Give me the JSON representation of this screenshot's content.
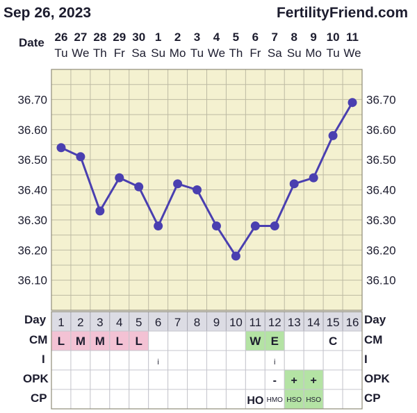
{
  "header": {
    "chart_date": "Sep 26, 2023",
    "site": "FertilityFriend.com"
  },
  "labels": {
    "date_row": "Date",
    "day_row": "Day",
    "cm_row": "CM",
    "i_row": "I",
    "opk_row": "OPK",
    "cp_row": "CP"
  },
  "colors": {
    "plot_bg": "#f4f1d0",
    "line": "#4a3fb0",
    "grid": "#bdbaa3",
    "pink": "#f3c2d4",
    "green": "#b4e3a4",
    "day_header": "#dcdce4"
  },
  "chart_data": {
    "type": "line",
    "y_unit": "°C",
    "ylim": [
      36.0,
      36.8
    ],
    "y_ticks": [
      "36.10",
      "36.20",
      "36.30",
      "36.40",
      "36.50",
      "36.60",
      "36.70"
    ],
    "dates": [
      "26",
      "27",
      "28",
      "29",
      "30",
      "1",
      "2",
      "3",
      "4",
      "5",
      "6",
      "7",
      "8",
      "9",
      "10",
      "11"
    ],
    "weekdays": [
      "Tu",
      "We",
      "Th",
      "Fr",
      "Sa",
      "Su",
      "Mo",
      "Tu",
      "We",
      "Th",
      "Fr",
      "Sa",
      "Su",
      "Mo",
      "Tu",
      "We"
    ],
    "cycle_days": [
      "1",
      "2",
      "3",
      "4",
      "5",
      "6",
      "7",
      "8",
      "9",
      "10",
      "11",
      "12",
      "13",
      "14",
      "15",
      "16"
    ],
    "temperatures": [
      36.54,
      36.51,
      36.33,
      36.44,
      36.41,
      36.28,
      36.42,
      36.4,
      36.28,
      36.18,
      36.28,
      36.28,
      36.42,
      36.44,
      36.58,
      36.69
    ],
    "grid": true
  },
  "rows": {
    "cm": [
      "L",
      "M",
      "M",
      "L",
      "L",
      "",
      "",
      "",
      "",
      "",
      "W",
      "E",
      "",
      "",
      "C",
      ""
    ],
    "cm_color": [
      "pink",
      "pink",
      "pink",
      "pink",
      "pink",
      "",
      "",
      "",
      "",
      "",
      "green",
      "green",
      "",
      "",
      "",
      ""
    ],
    "intercourse": [
      "",
      "",
      "",
      "",
      "",
      "i",
      "",
      "",
      "",
      "",
      "",
      "i",
      "",
      "",
      "",
      ""
    ],
    "opk": [
      "",
      "",
      "",
      "",
      "",
      "",
      "",
      "",
      "",
      "",
      "",
      "-",
      "+",
      "+",
      "",
      ""
    ],
    "opk_color": [
      "",
      "",
      "",
      "",
      "",
      "",
      "",
      "",
      "",
      "",
      "",
      "",
      "green",
      "green",
      "",
      ""
    ],
    "cp": [
      "",
      "",
      "",
      "",
      "",
      "",
      "",
      "",
      "",
      "",
      "HO",
      "HMO",
      "HSO",
      "HSO",
      "",
      ""
    ],
    "cp_color": [
      "",
      "",
      "",
      "",
      "",
      "",
      "",
      "",
      "",
      "",
      "",
      "",
      "green",
      "green",
      "",
      ""
    ]
  }
}
